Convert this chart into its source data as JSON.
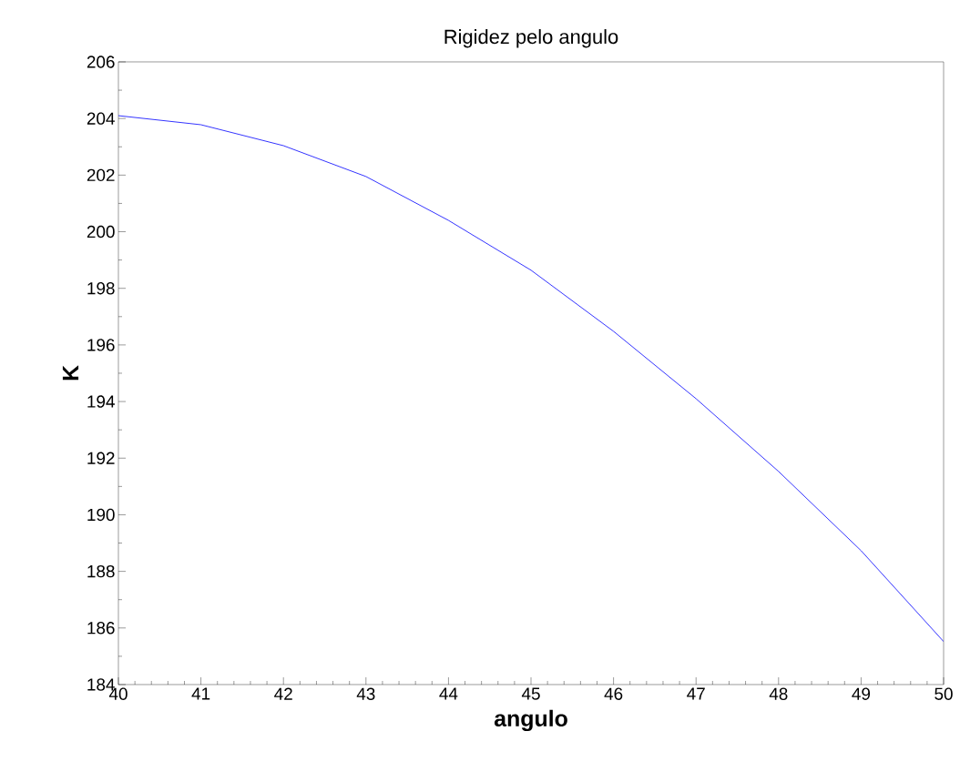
{
  "chart_data": {
    "type": "line",
    "title": "Rigidez pelo angulo",
    "xlabel": "angulo",
    "ylabel": "K",
    "x": [
      40,
      41,
      42,
      43,
      44,
      45,
      46,
      47,
      48,
      49,
      50
    ],
    "series": [
      {
        "color": "#0000ff",
        "values": [
          204.1,
          203.78,
          203.04,
          201.95,
          200.4,
          198.64,
          196.48,
          194.1,
          191.53,
          188.73,
          185.52
        ]
      }
    ],
    "xlim": [
      40,
      50
    ],
    "ylim": [
      184,
      206
    ],
    "xticks": [
      40,
      41,
      42,
      43,
      44,
      45,
      46,
      47,
      48,
      49,
      50
    ],
    "yticks": [
      184,
      186,
      188,
      190,
      192,
      194,
      196,
      198,
      200,
      202,
      204,
      206
    ],
    "grid": false,
    "marker": "none",
    "line_style": "solid"
  }
}
